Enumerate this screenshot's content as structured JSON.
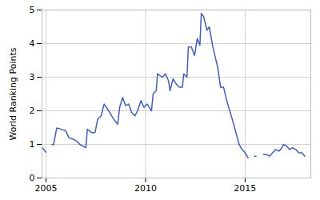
{
  "chart_data": {
    "type": "line",
    "y_label": "World Ranking Points",
    "x": [
      2004.85,
      2004.92,
      2005.0,
      2005.15,
      2005.3,
      2005.38,
      2005.54,
      2005.77,
      2006.0,
      2006.15,
      2006.38,
      2006.54,
      2006.7,
      2006.85,
      2007.0,
      2007.08,
      2007.3,
      2007.46,
      2007.6,
      2007.77,
      2007.92,
      2008.15,
      2008.3,
      2008.46,
      2008.6,
      2008.7,
      2008.85,
      2009.0,
      2009.15,
      2009.3,
      2009.46,
      2009.6,
      2009.77,
      2009.92,
      2010.08,
      2010.3,
      2010.38,
      2010.54,
      2010.6,
      2010.85,
      2011.0,
      2011.15,
      2011.23,
      2011.38,
      2011.54,
      2011.7,
      2011.85,
      2011.92,
      2012.08,
      2012.15,
      2012.3,
      2012.46,
      2012.6,
      2012.73,
      2012.8,
      2012.92,
      2013.08,
      2013.2,
      2013.38,
      2013.62,
      2013.77,
      2013.92,
      2014.08,
      2014.23,
      2014.38,
      2014.54,
      2014.7,
      2014.85,
      2015.0,
      2015.15,
      2015.3,
      2015.46,
      2015.55,
      2015.75,
      2015.92,
      2016.08,
      2016.23,
      2016.38,
      2016.54,
      2016.7,
      2016.85,
      2016.92,
      2017.08,
      2017.23,
      2017.38,
      2017.54,
      2017.7,
      2017.85,
      2018.0
    ],
    "values": [
      0.89,
      0.82,
      0.77,
      null,
      1.0,
      0.99,
      1.49,
      1.45,
      1.4,
      1.2,
      1.15,
      1.1,
      1.0,
      0.95,
      0.9,
      1.45,
      1.35,
      1.35,
      1.75,
      1.85,
      2.2,
      2.0,
      1.85,
      1.7,
      1.6,
      2.1,
      2.4,
      2.15,
      2.2,
      1.95,
      1.85,
      2.0,
      2.3,
      2.1,
      2.2,
      2.0,
      2.5,
      2.6,
      3.1,
      3.0,
      3.1,
      2.9,
      2.6,
      2.95,
      2.8,
      2.7,
      2.7,
      3.1,
      3.0,
      3.9,
      3.9,
      3.65,
      4.15,
      3.95,
      4.9,
      4.8,
      4.4,
      4.5,
      3.9,
      3.3,
      2.7,
      2.7,
      2.3,
      2.0,
      1.7,
      1.35,
      1.0,
      0.85,
      0.75,
      0.6,
      null,
      0.65,
      0.65,
      null,
      0.7,
      0.7,
      0.65,
      0.75,
      0.85,
      0.8,
      0.9,
      1.0,
      0.95,
      0.85,
      0.9,
      0.85,
      0.75,
      0.75,
      0.65
    ],
    "color": "#3a5fcd",
    "xlim": [
      2004.8,
      2018.3
    ],
    "xticks": [
      2005,
      2010,
      2015
    ],
    "ylim": [
      0,
      5
    ],
    "yticks": [
      0,
      1,
      2,
      3,
      4,
      5
    ],
    "grid": true
  }
}
